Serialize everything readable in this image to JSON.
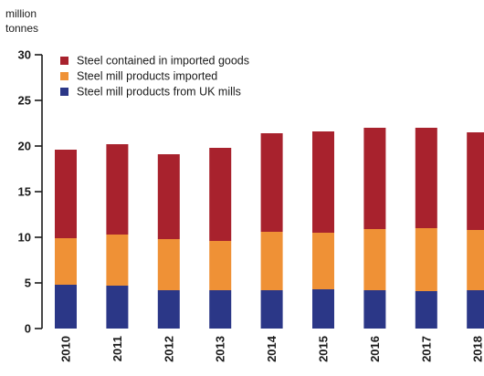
{
  "chart_data": {
    "type": "bar",
    "stacked": true,
    "unit_label_line1": "million",
    "unit_label_line2": "tonnes",
    "categories": [
      "2010",
      "2011",
      "2012",
      "2013",
      "2014",
      "2015",
      "2016",
      "2017",
      "2018"
    ],
    "series": [
      {
        "name": "Steel mill products from UK mills",
        "color": "#2b3787",
        "values": [
          4.8,
          4.7,
          4.2,
          4.2,
          4.2,
          4.3,
          4.2,
          4.1,
          4.2
        ]
      },
      {
        "name": "Steel mill products imported",
        "color": "#ef9136",
        "values": [
          5.1,
          5.6,
          5.6,
          5.4,
          6.4,
          6.2,
          6.7,
          6.9,
          6.6
        ]
      },
      {
        "name": "Steel contained in imported goods",
        "color": "#a8222d",
        "values": [
          9.7,
          9.9,
          9.3,
          10.2,
          10.8,
          11.1,
          11.1,
          11.0,
          10.7
        ]
      }
    ],
    "legend_order": [
      2,
      1,
      0
    ],
    "yticks": [
      0,
      5,
      10,
      15,
      20,
      25,
      30
    ],
    "ylim": [
      0,
      30
    ],
    "legend_position": "top-left",
    "grid": false
  }
}
